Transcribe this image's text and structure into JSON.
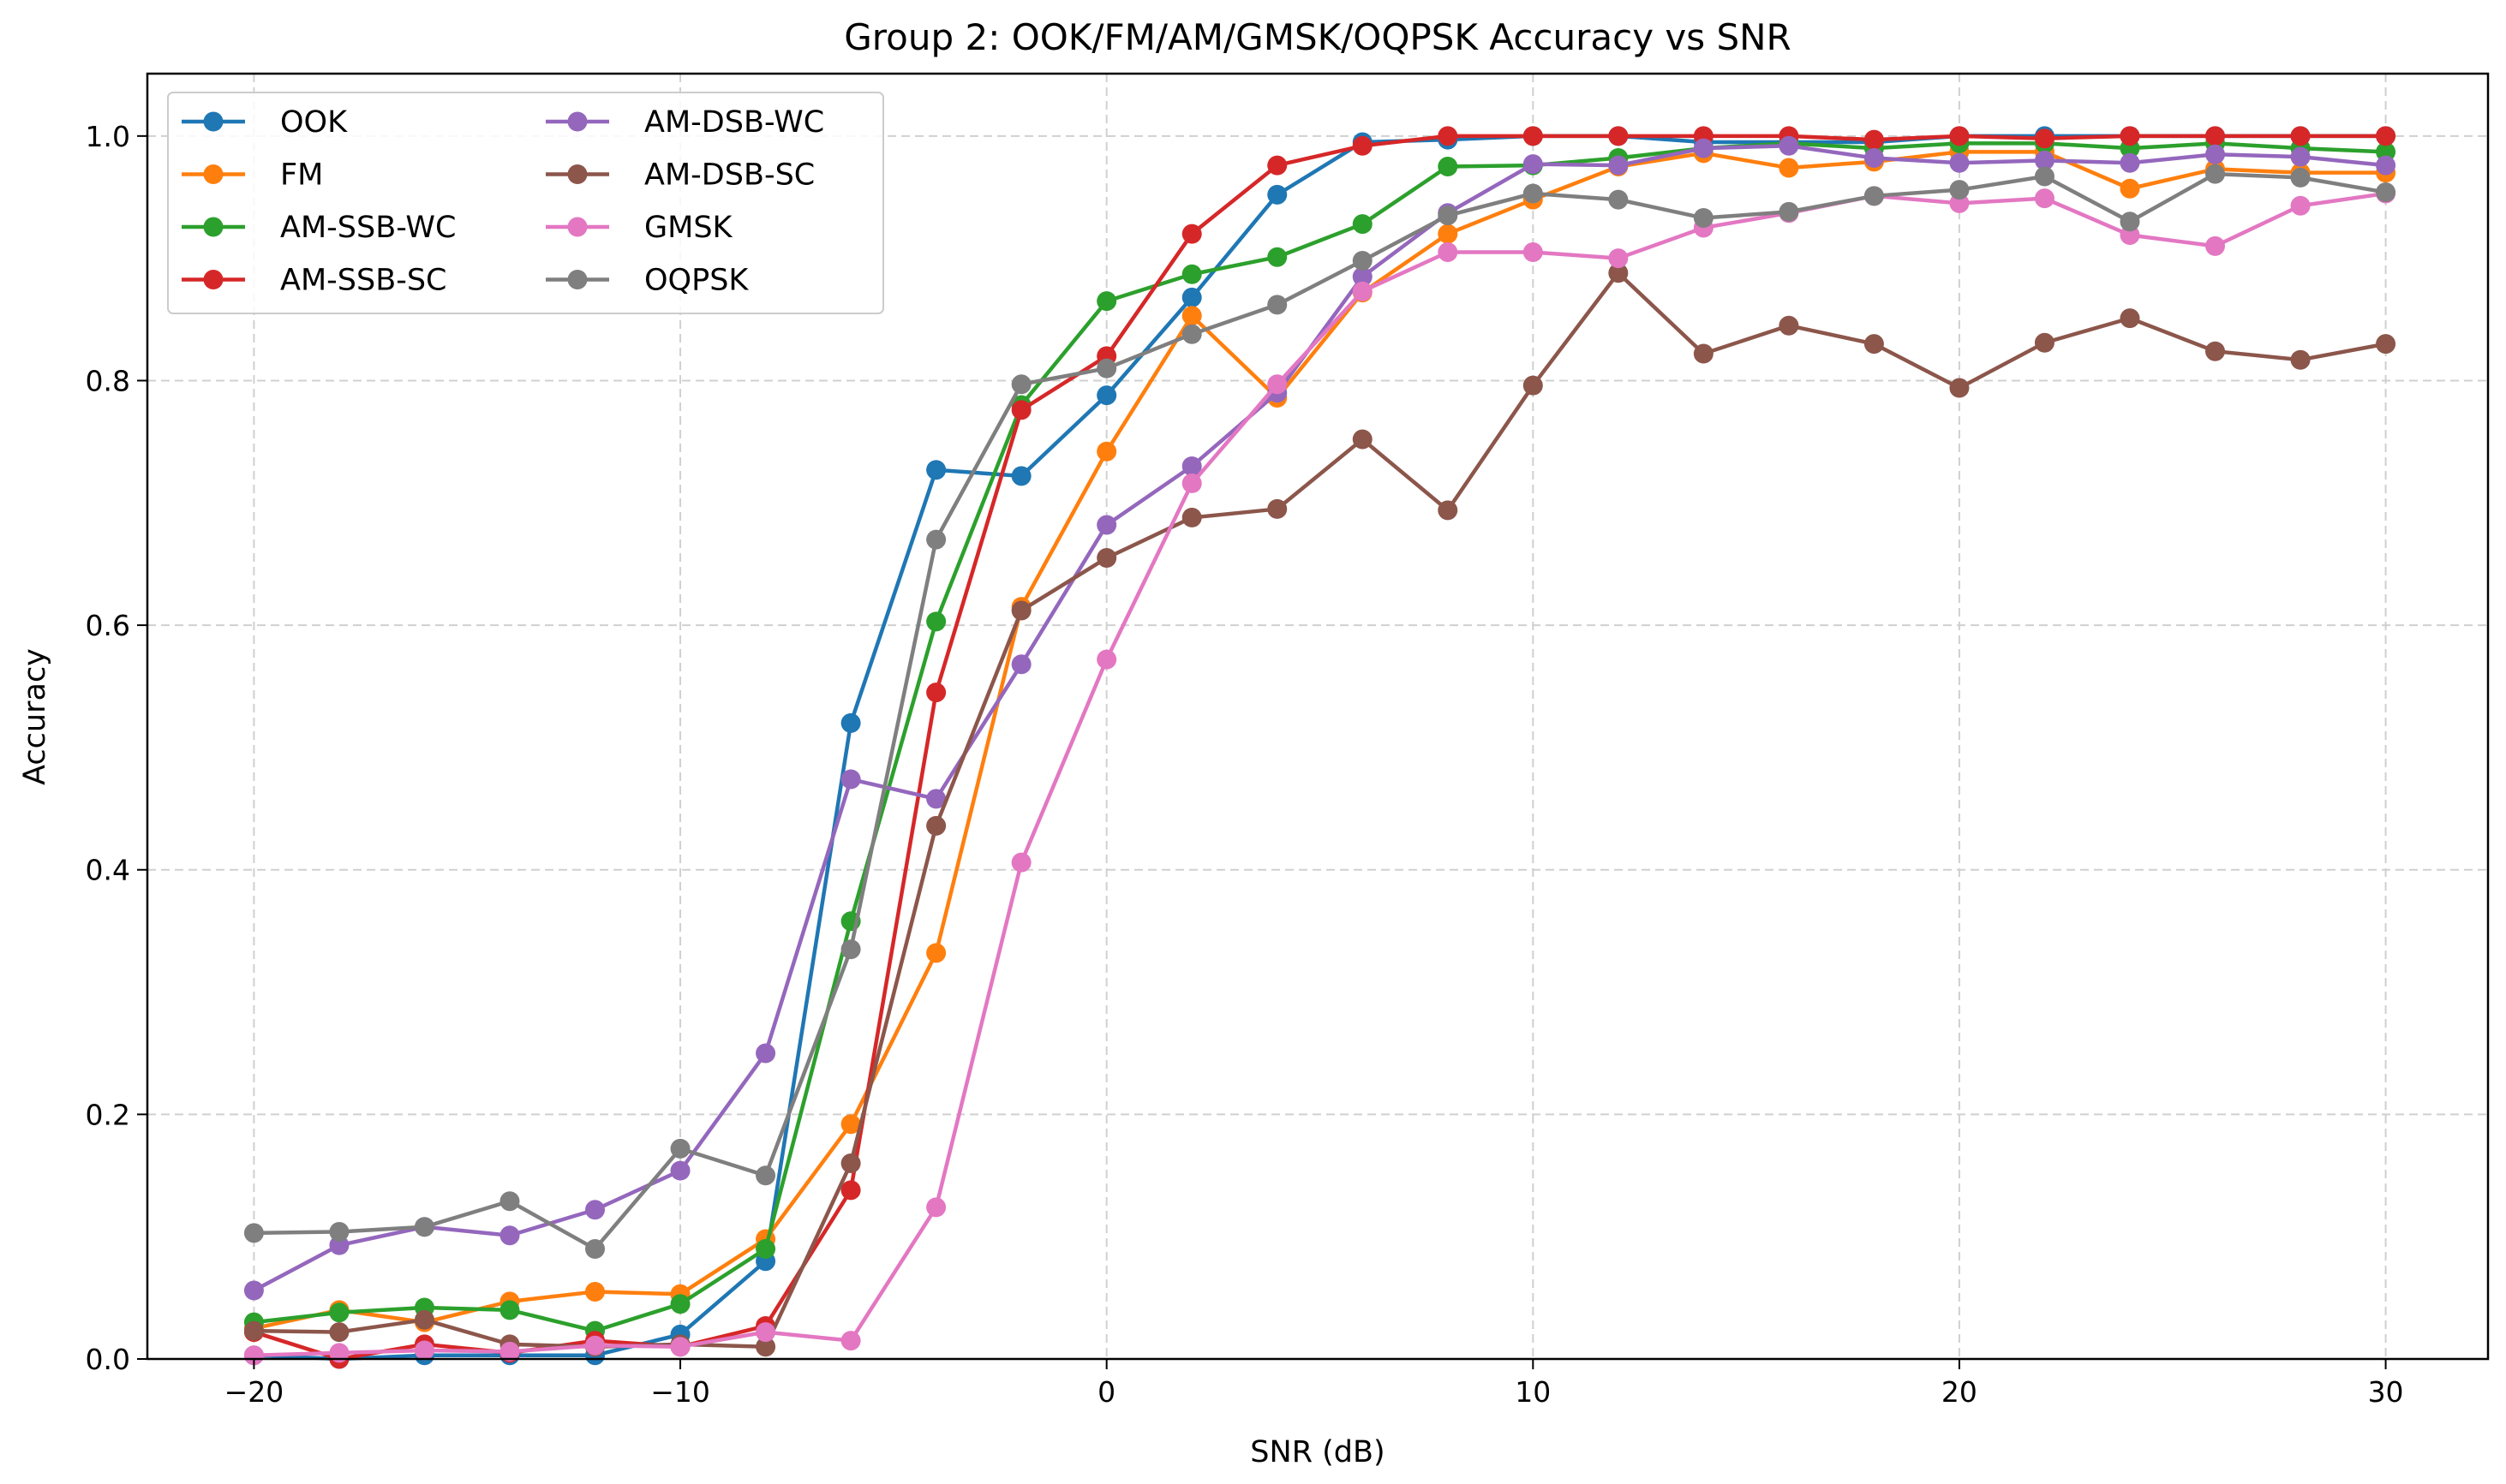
{
  "chart_data": {
    "type": "line",
    "title": "Group 2: OOK/FM/AM/GMSK/OQPSK Accuracy vs SNR",
    "xlabel": "SNR (dB)",
    "ylabel": "Accuracy",
    "xlim": [
      -22.5,
      32.4
    ],
    "ylim": [
      0,
      1.051
    ],
    "xticks": [
      -20,
      -10,
      0,
      10,
      20,
      30
    ],
    "xtick_labels": [
      "−20",
      "−10",
      "0",
      "10",
      "20",
      "30"
    ],
    "yticks": [
      0,
      0.2,
      0.4,
      0.6,
      0.8,
      1.0
    ],
    "ytick_labels": [
      "0.0",
      "0.2",
      "0.4",
      "0.6",
      "0.8",
      "1.0"
    ],
    "grid": true,
    "legend_position": "top-left",
    "legend_columns": 2,
    "x": [
      -20,
      -18,
      -16,
      -14,
      -12,
      -10,
      -8,
      -6,
      -4,
      -2,
      0,
      2,
      4,
      6,
      8,
      10,
      12,
      14,
      16,
      18,
      20,
      22,
      24,
      26,
      28,
      30
    ],
    "series": [
      {
        "name": "OOK",
        "color": "#1f77b4",
        "values": [
          0.003,
          0.0,
          0.003,
          0.003,
          0.003,
          0.02,
          0.08,
          0.52,
          0.727,
          0.722,
          0.788,
          0.868,
          0.952,
          0.995,
          0.997,
          1.0,
          1.0,
          0.995,
          0.995,
          0.995,
          1.0,
          1.0,
          1.0,
          1.0,
          1.0,
          1.0
        ]
      },
      {
        "name": "FM",
        "color": "#ff7f0e",
        "values": [
          0.025,
          0.04,
          0.03,
          0.047,
          0.055,
          0.053,
          0.098,
          0.192,
          0.332,
          0.615,
          0.742,
          0.853,
          0.786,
          0.872,
          0.92,
          0.948,
          0.975,
          0.986,
          0.974,
          0.979,
          0.987,
          0.987,
          0.957,
          0.973,
          0.97,
          0.97
        ]
      },
      {
        "name": "AM-SSB-WC",
        "color": "#2ca02c",
        "values": [
          0.03,
          0.038,
          0.042,
          0.04,
          0.023,
          0.045,
          0.09,
          0.358,
          0.603,
          0.78,
          0.865,
          0.887,
          0.901,
          0.928,
          0.975,
          0.976,
          0.982,
          0.99,
          0.994,
          0.99,
          0.994,
          0.994,
          0.99,
          0.994,
          0.99,
          0.987
        ]
      },
      {
        "name": "AM-SSB-SC",
        "color": "#d62728",
        "values": [
          0.022,
          0.0,
          0.012,
          0.005,
          0.015,
          0.01,
          0.027,
          0.138,
          0.545,
          0.776,
          0.82,
          0.92,
          0.976,
          0.992,
          1.0,
          1.0,
          1.0,
          1.0,
          1.0,
          0.997,
          1.0,
          0.998,
          1.0,
          1.0,
          1.0,
          1.0
        ]
      },
      {
        "name": "AM-DSB-WC",
        "color": "#9467bd",
        "values": [
          0.056,
          0.093,
          0.108,
          0.101,
          0.122,
          0.154,
          0.25,
          0.474,
          0.458,
          0.568,
          0.682,
          0.73,
          0.79,
          0.885,
          0.937,
          0.977,
          0.976,
          0.99,
          0.992,
          0.982,
          0.978,
          0.98,
          0.978,
          0.985,
          0.983,
          0.976
        ]
      },
      {
        "name": "AM-DSB-SC",
        "color": "#8c564b",
        "values": [
          0.023,
          0.022,
          0.032,
          0.012,
          0.01,
          0.012,
          0.01,
          0.16,
          0.436,
          0.612,
          0.655,
          0.688,
          0.695,
          0.752,
          0.694,
          0.796,
          0.888,
          0.822,
          0.845,
          0.83,
          0.794,
          0.831,
          0.851,
          0.824,
          0.817,
          0.83
        ]
      },
      {
        "name": "GMSK",
        "color": "#e377c2",
        "values": [
          0.003,
          0.005,
          0.007,
          0.006,
          0.011,
          0.01,
          0.022,
          0.015,
          0.124,
          0.406,
          0.572,
          0.716,
          0.797,
          0.873,
          0.905,
          0.905,
          0.9,
          0.925,
          0.937,
          0.951,
          0.945,
          0.949,
          0.919,
          0.91,
          0.943,
          0.953
        ]
      },
      {
        "name": "OQPSK",
        "color": "#7f7f7f",
        "values": [
          0.103,
          0.104,
          0.108,
          0.129,
          0.09,
          0.172,
          0.15,
          0.335,
          0.67,
          0.797,
          0.81,
          0.838,
          0.862,
          0.898,
          0.935,
          0.953,
          0.948,
          0.933,
          0.938,
          0.951,
          0.956,
          0.967,
          0.93,
          0.969,
          0.966,
          0.954
        ]
      }
    ]
  }
}
